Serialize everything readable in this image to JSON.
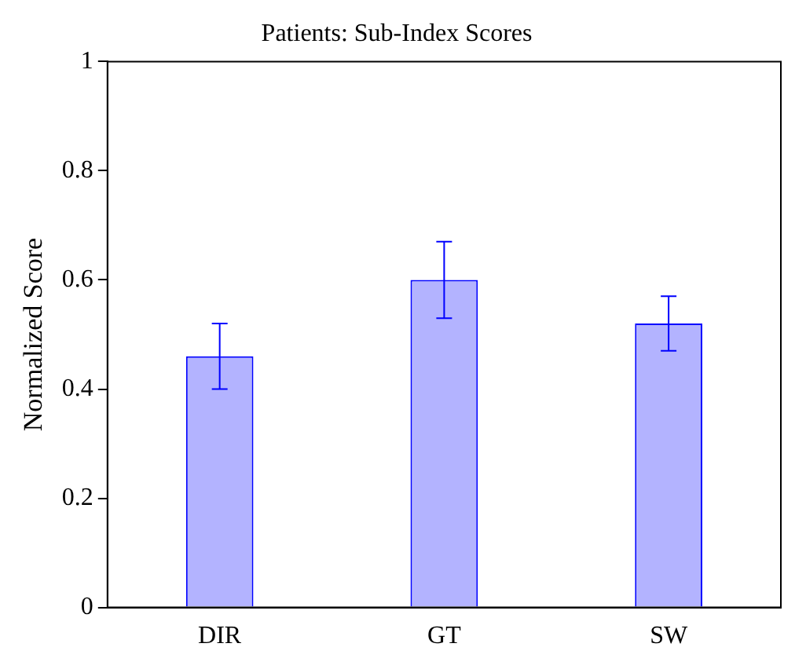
{
  "chart_data": {
    "type": "bar",
    "title": "Patients: Sub-Index Scores",
    "ylabel": "Normalized Score",
    "categories": [
      "DIR",
      "GT",
      "SW"
    ],
    "series": [
      {
        "color": "#b3b3ff",
        "values": [
          0.46,
          0.6,
          0.52
        ],
        "errors": [
          0.06,
          0.07,
          0.05
        ]
      }
    ],
    "ylim": [
      0,
      1
    ],
    "yticks": [
      0,
      0.2,
      0.4,
      0.6,
      0.8,
      1
    ],
    "grid": false,
    "legend": false
  }
}
